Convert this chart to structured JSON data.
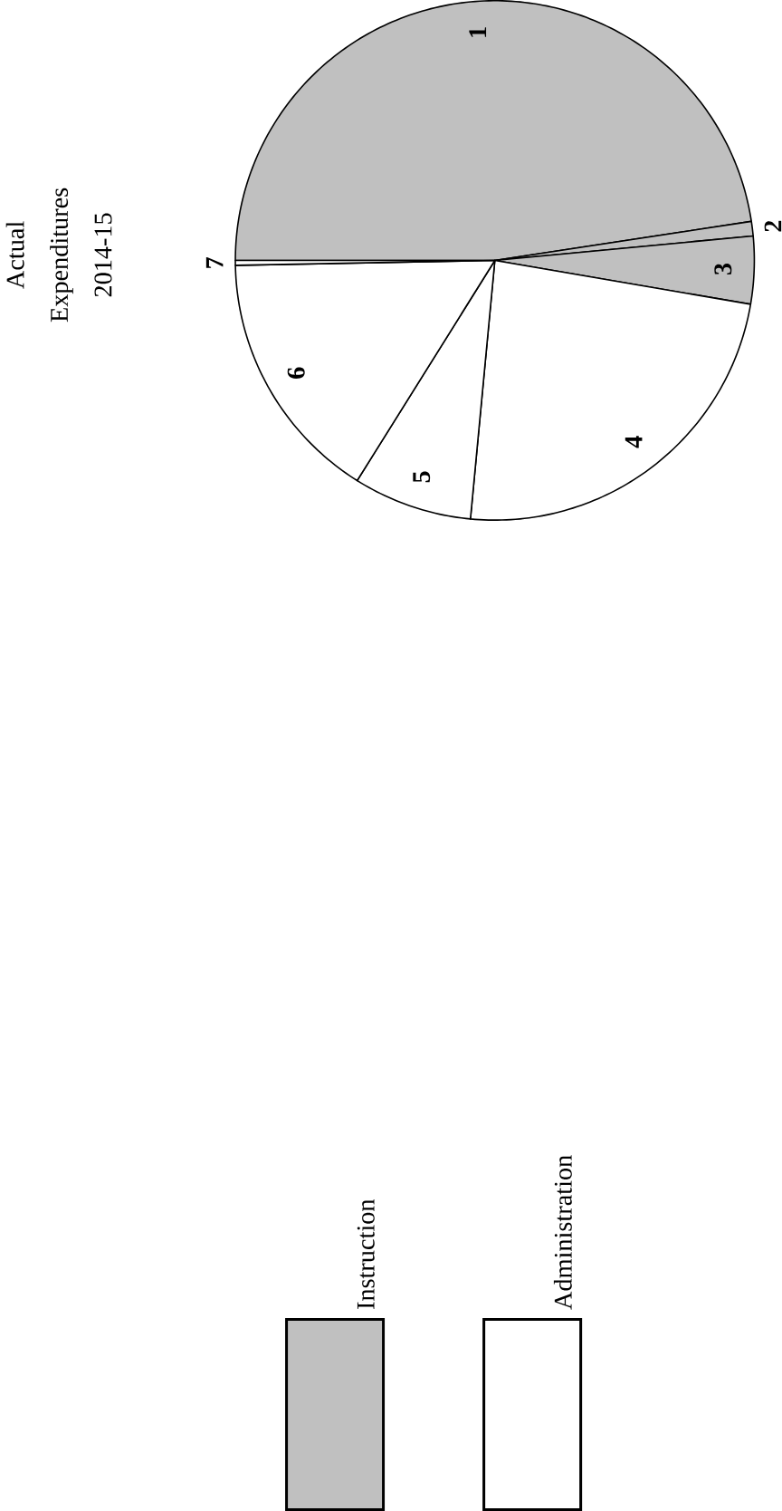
{
  "chart_data": {
    "type": "pie",
    "title": "Actual Expenditures 2014-15",
    "categories": [
      "1",
      "2",
      "3",
      "4",
      "5",
      "6",
      "7"
    ],
    "values": [
      47.6,
      0.9,
      4.2,
      23.8,
      7.4,
      15.8,
      0.3
    ],
    "colors": [
      "#c0c0c0",
      "#c0c0c0",
      "#c0c0c0",
      "#ffffff",
      "#ffffff",
      "#ffffff",
      "#ffffff"
    ],
    "annotations": [
      "Instruction",
      "Administration"
    ]
  }
}
